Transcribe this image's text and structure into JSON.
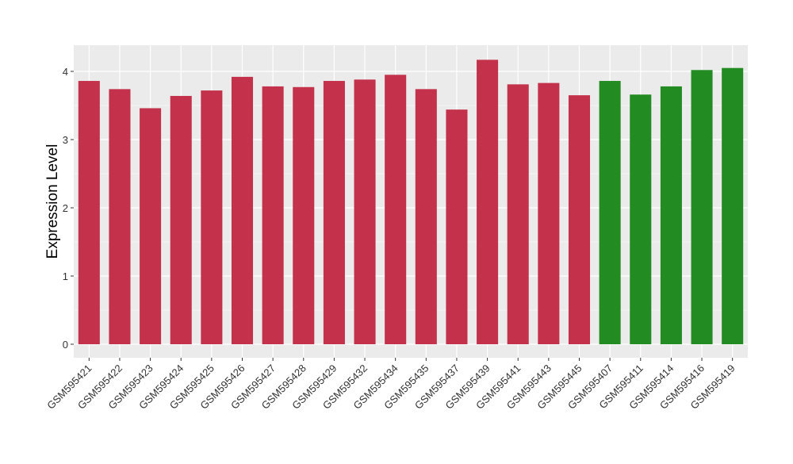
{
  "chart_data": {
    "type": "bar",
    "title": "",
    "xlabel": "",
    "ylabel": "Expression Level",
    "ylim": [
      -0.2,
      4.35
    ],
    "yticks": [
      0,
      1,
      2,
      3,
      4
    ],
    "grid": true,
    "categories": [
      "GSM595421",
      "GSM595422",
      "GSM595423",
      "GSM595424",
      "GSM595425",
      "GSM595426",
      "GSM595427",
      "GSM595428",
      "GSM595429",
      "GSM595432",
      "GSM595434",
      "GSM595435",
      "GSM595437",
      "GSM595439",
      "GSM595441",
      "GSM595443",
      "GSM595445",
      "GSM595407",
      "GSM595411",
      "GSM595414",
      "GSM595416",
      "GSM595419"
    ],
    "values": [
      3.86,
      3.74,
      3.46,
      3.64,
      3.72,
      3.92,
      3.78,
      3.77,
      3.86,
      3.88,
      3.95,
      3.74,
      3.44,
      4.17,
      3.81,
      3.83,
      3.65,
      3.86,
      3.66,
      3.78,
      4.02,
      4.05
    ],
    "groups": [
      "a",
      "a",
      "a",
      "a",
      "a",
      "a",
      "a",
      "a",
      "a",
      "a",
      "a",
      "a",
      "a",
      "a",
      "a",
      "a",
      "a",
      "b",
      "b",
      "b",
      "b",
      "b"
    ],
    "colors": {
      "a": "#c3314a",
      "b": "#228b22"
    }
  }
}
